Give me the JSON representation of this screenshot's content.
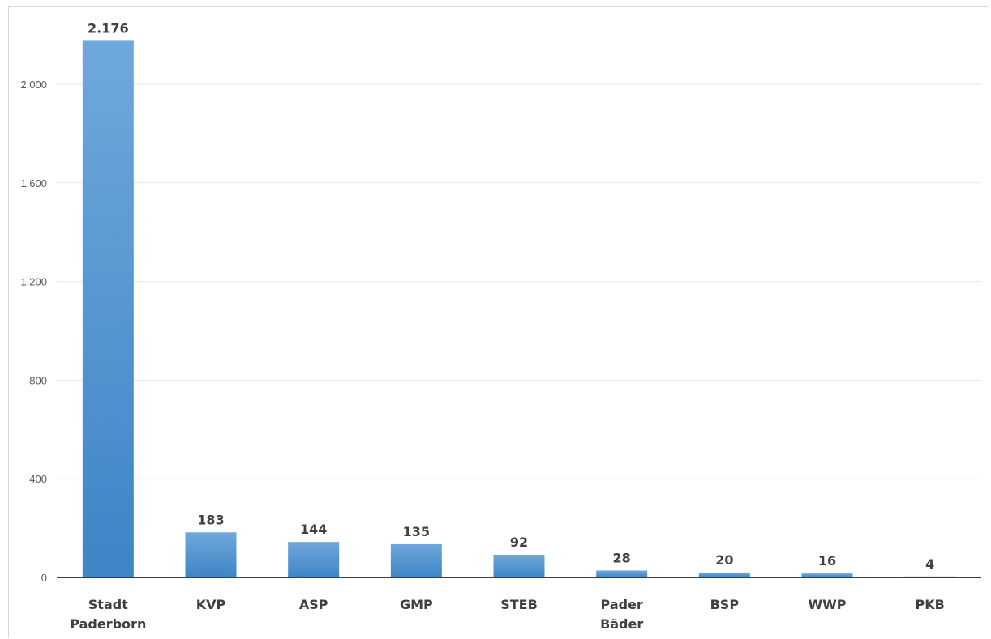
{
  "colors": {
    "bar_top": "#6fa8dc",
    "bar_bottom": "#3d85c6",
    "grid": "#e6e6e6",
    "axis": "#000000"
  },
  "chart_data": {
    "type": "bar",
    "title": "",
    "xlabel": "",
    "ylabel": "",
    "categories": [
      [
        "Stadt",
        "Paderborn"
      ],
      [
        "KVP"
      ],
      [
        "ASP"
      ],
      [
        "GMP"
      ],
      [
        "STEB"
      ],
      [
        "Pader",
        "Bäder"
      ],
      [
        "BSP"
      ],
      [
        "WWP"
      ],
      [
        "PKB"
      ]
    ],
    "values": [
      2176,
      183,
      144,
      135,
      92,
      28,
      20,
      16,
      4
    ],
    "value_labels": [
      "2.176",
      "183",
      "144",
      "135",
      "92",
      "28",
      "20",
      "16",
      "4"
    ],
    "ylim": [
      0,
      2000
    ],
    "yticks": [
      0,
      400,
      800,
      1200,
      1600,
      2000
    ],
    "ytick_labels": [
      "0",
      "400",
      "800",
      "1.200",
      "1.600",
      "2.000"
    ],
    "grid": true,
    "legend": "none"
  }
}
